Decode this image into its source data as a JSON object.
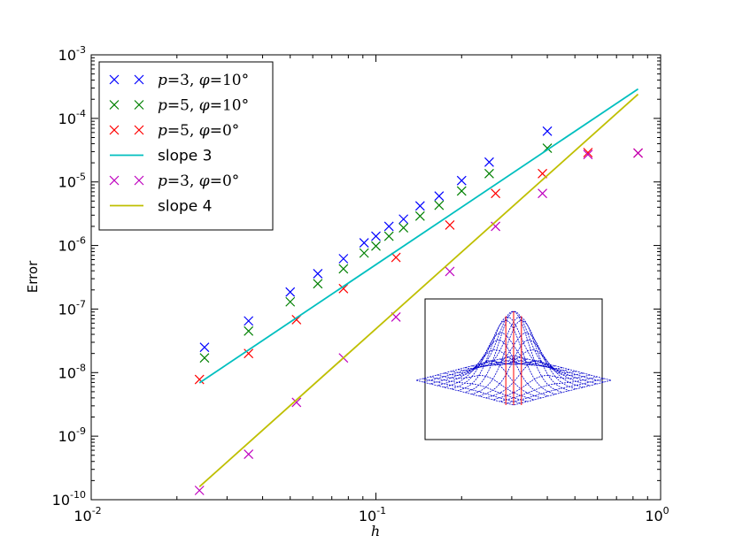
{
  "chart_data": {
    "type": "scatter",
    "xlabel": "h",
    "ylabel": "Error",
    "xscale": "log",
    "yscale": "log",
    "xlim": [
      0.01,
      1.0
    ],
    "ylim": [
      1e-10,
      0.001
    ],
    "x_ticks": [
      {
        "base": "10",
        "exp": "-2"
      },
      {
        "base": "10",
        "exp": "-1"
      },
      {
        "base": "10",
        "exp": "0"
      }
    ],
    "y_ticks": [
      {
        "base": "10",
        "exp": "-10"
      },
      {
        "base": "10",
        "exp": "-9"
      },
      {
        "base": "10",
        "exp": "-8"
      },
      {
        "base": "10",
        "exp": "-7"
      },
      {
        "base": "10",
        "exp": "-6"
      },
      {
        "base": "10",
        "exp": "-5"
      },
      {
        "base": "10",
        "exp": "-4"
      },
      {
        "base": "10",
        "exp": "-3"
      }
    ],
    "grid": false,
    "legend_placement": "top-left",
    "series": [
      {
        "name": "p=3, φ=10°",
        "kind": "markers",
        "color": "#0000ff",
        "x": [
          0.025,
          0.0357,
          0.05,
          0.0625,
          0.0769,
          0.0909,
          0.1,
          0.1111,
          0.125,
          0.1429,
          0.1667,
          0.2,
          0.25,
          0.4
        ],
        "y": [
          2.5e-08,
          6.5e-08,
          1.85e-07,
          3.6e-07,
          6.2e-07,
          1.1e-06,
          1.4e-06,
          2e-06,
          2.6e-06,
          4.2e-06,
          6e-06,
          1.05e-05,
          2.05e-05,
          6.3e-05
        ]
      },
      {
        "name": "p=5, φ=10°",
        "kind": "markers",
        "color": "#008000",
        "x": [
          0.025,
          0.0357,
          0.05,
          0.0625,
          0.0769,
          0.0909,
          0.1,
          0.1111,
          0.125,
          0.1429,
          0.1667,
          0.2,
          0.25,
          0.4
        ],
        "y": [
          1.7e-08,
          4.5e-08,
          1.3e-07,
          2.5e-07,
          4.3e-07,
          7.6e-07,
          9.8e-07,
          1.4e-06,
          1.9e-06,
          2.9e-06,
          4.3e-06,
          7.2e-06,
          1.35e-05,
          3.4e-05
        ]
      },
      {
        "name": "p=5, φ=0°",
        "kind": "markers",
        "color": "#ff0000",
        "x": [
          0.024,
          0.0357,
          0.0526,
          0.0769,
          0.1176,
          0.1818,
          0.2632,
          0.3846,
          0.5556,
          0.8333
        ],
        "y": [
          7.8e-09,
          2e-08,
          6.8e-08,
          2.1e-07,
          6.5e-07,
          2.1e-06,
          6.6e-06,
          1.35e-05,
          2.9e-05,
          2.85e-05
        ]
      },
      {
        "name": "slope 3",
        "kind": "line",
        "color": "#00bfbf",
        "x": [
          0.024,
          0.8333
        ],
        "y": [
          6.9e-09,
          0.00029
        ]
      },
      {
        "name": "p=3, φ=0°",
        "kind": "markers",
        "color": "#bf00bf",
        "x": [
          0.024,
          0.0357,
          0.0526,
          0.0769,
          0.1176,
          0.1818,
          0.2632,
          0.3846,
          0.5556,
          0.8333
        ],
        "y": [
          1.4e-10,
          5.2e-10,
          3.4e-09,
          1.7e-08,
          7.5e-08,
          3.9e-07,
          2e-06,
          6.6e-06,
          2.7e-05,
          2.85e-05
        ]
      },
      {
        "name": "slope 4",
        "kind": "line",
        "color": "#bfbf00",
        "x": [
          0.024,
          0.8333
        ],
        "y": [
          1.6e-10,
          0.00024
        ]
      }
    ]
  },
  "legend": {
    "entries": [
      {
        "color": "#0000ff",
        "kind": "markers",
        "p": "p",
        "pval": "3",
        "phi": "φ",
        "phival": "10°"
      },
      {
        "color": "#008000",
        "kind": "markers",
        "p": "p",
        "pval": "5",
        "phi": "φ",
        "phival": "10°"
      },
      {
        "color": "#ff0000",
        "kind": "markers",
        "p": "p",
        "pval": "5",
        "phi": "φ",
        "phival": "0°"
      },
      {
        "color": "#00bfbf",
        "kind": "line",
        "label": "slope 3"
      },
      {
        "color": "#bf00bf",
        "kind": "markers",
        "p": "p",
        "pval": "3",
        "phi": "φ",
        "phival": "0°"
      },
      {
        "color": "#bfbf00",
        "kind": "line",
        "label": "slope 4"
      }
    ]
  },
  "inset": {
    "description_visible": false,
    "mesh_color": "#0000cc",
    "outline_color": "#ff0000"
  }
}
